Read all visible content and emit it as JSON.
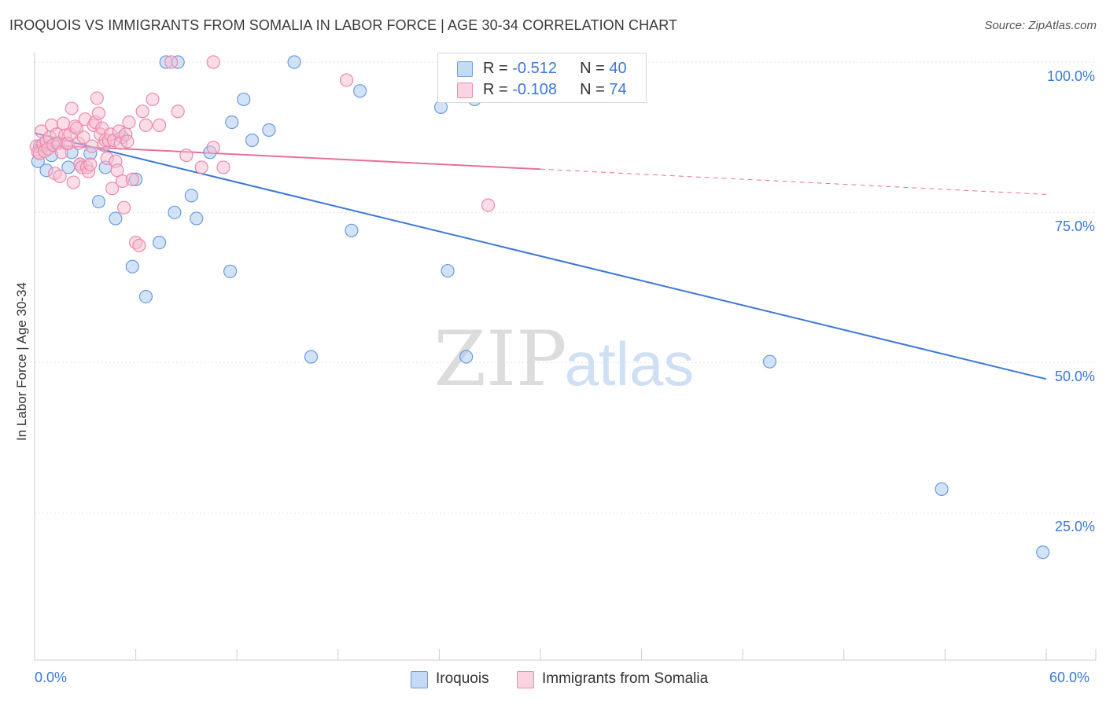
{
  "title": "IROQUOIS VS IMMIGRANTS FROM SOMALIA IN LABOR FORCE | AGE 30-34 CORRELATION CHART",
  "source": "Source: ZipAtlas.com",
  "watermark": {
    "zip": "ZIP",
    "atlas": "atlas"
  },
  "legend": {
    "rows": [
      {
        "r_label": "R = ",
        "r_value": "-0.512",
        "n_label": "N = ",
        "n_value": "40",
        "color": "#a8c8f0",
        "stroke": "#6b9be0"
      },
      {
        "r_label": "R = ",
        "r_value": "-0.108",
        "n_label": "N = ",
        "n_value": "74",
        "color": "#f8bcd0",
        "stroke": "#ec8aac"
      }
    ]
  },
  "bottom_legend": [
    {
      "label": "Iroquois",
      "color": "#a8c8f0",
      "stroke": "#6b9be0"
    },
    {
      "label": "Immigrants from Somalia",
      "color": "#f8bcd0",
      "stroke": "#ec8aac"
    }
  ],
  "axes": {
    "ylabel": "In Labor Force | Age 30-34",
    "x_ticks": [
      "0.0%",
      "60.0%"
    ],
    "y_ticks": [
      "100.0%",
      "75.0%",
      "50.0%",
      "25.0%"
    ]
  },
  "chart_data": {
    "type": "scatter",
    "title": "IROQUOIS VS IMMIGRANTS FROM SOMALIA IN LABOR FORCE | AGE 30-34 CORRELATION CHART",
    "xlabel": "",
    "ylabel": "In Labor Force | Age 30-34",
    "xlim": [
      0,
      60
    ],
    "ylim": [
      3,
      102
    ],
    "x_tick_values": [
      0,
      60
    ],
    "y_tick_values": [
      100,
      75,
      50,
      25
    ],
    "grid": true,
    "series": [
      {
        "name": "Iroquois",
        "color": "#6b9be0",
        "fill": "#a8c8f0",
        "points": [
          [
            0.2,
            83.5
          ],
          [
            0.3,
            86
          ],
          [
            0.7,
            82
          ],
          [
            1.0,
            84.5
          ],
          [
            1.3,
            86.5
          ],
          [
            2.0,
            82.5
          ],
          [
            2.2,
            85
          ],
          [
            2.7,
            83
          ],
          [
            3.3,
            84.8
          ],
          [
            3.8,
            76.8
          ],
          [
            4.2,
            82.5
          ],
          [
            4.8,
            74
          ],
          [
            5.2,
            87.5
          ],
          [
            5.8,
            66
          ],
          [
            6.0,
            80.5
          ],
          [
            6.6,
            61
          ],
          [
            7.4,
            70
          ],
          [
            7.8,
            100
          ],
          [
            8.3,
            75
          ],
          [
            8.5,
            100
          ],
          [
            9.3,
            77.8
          ],
          [
            9.6,
            74
          ],
          [
            10.4,
            85
          ],
          [
            11.6,
            65.2
          ],
          [
            11.7,
            90
          ],
          [
            12.4,
            93.8
          ],
          [
            12.9,
            87
          ],
          [
            13.9,
            88.7
          ],
          [
            15.4,
            100
          ],
          [
            16.4,
            51
          ],
          [
            18.8,
            72
          ],
          [
            19.3,
            95.2
          ],
          [
            24.1,
            92.5
          ],
          [
            24.5,
            65.3
          ],
          [
            25.6,
            51
          ],
          [
            26.1,
            93.8
          ],
          [
            28.1,
            100
          ],
          [
            43.6,
            50.2
          ],
          [
            53.8,
            29
          ],
          [
            59.8,
            18.5
          ]
        ],
        "trend": {
          "x": [
            0,
            60
          ],
          "y": [
            88.2,
            47.3
          ],
          "style": "solid"
        }
      },
      {
        "name": "Immigrants from Somalia",
        "color": "#ec8aac",
        "fill": "#f8bcd0",
        "points": [
          [
            0.1,
            86
          ],
          [
            0.2,
            85
          ],
          [
            0.3,
            84.8
          ],
          [
            0.4,
            88.5
          ],
          [
            0.5,
            86.3
          ],
          [
            0.6,
            85.2
          ],
          [
            0.7,
            86.8
          ],
          [
            0.8,
            85.6
          ],
          [
            0.9,
            87.5
          ],
          [
            1.0,
            89.5
          ],
          [
            1.1,
            86.2
          ],
          [
            1.2,
            81.5
          ],
          [
            1.3,
            88
          ],
          [
            1.4,
            86.5
          ],
          [
            1.5,
            81
          ],
          [
            1.6,
            85
          ],
          [
            1.7,
            89.8
          ],
          [
            1.8,
            87.8
          ],
          [
            1.9,
            86.5
          ],
          [
            2.0,
            86.5
          ],
          [
            2.1,
            88
          ],
          [
            2.2,
            92.3
          ],
          [
            2.3,
            80
          ],
          [
            2.4,
            89.3
          ],
          [
            2.5,
            89
          ],
          [
            2.6,
            86.5
          ],
          [
            2.7,
            83
          ],
          [
            2.8,
            82.5
          ],
          [
            2.9,
            87.5
          ],
          [
            3.0,
            90.5
          ],
          [
            3.1,
            82.5
          ],
          [
            3.2,
            81.8
          ],
          [
            3.3,
            83
          ],
          [
            3.4,
            86
          ],
          [
            3.5,
            89.5
          ],
          [
            3.6,
            90
          ],
          [
            3.7,
            94
          ],
          [
            3.8,
            91.5
          ],
          [
            3.9,
            88
          ],
          [
            4.0,
            89
          ],
          [
            4.1,
            86.2
          ],
          [
            4.2,
            87
          ],
          [
            4.3,
            84
          ],
          [
            4.4,
            87
          ],
          [
            4.5,
            88
          ],
          [
            4.6,
            79
          ],
          [
            4.7,
            87
          ],
          [
            4.8,
            83.5
          ],
          [
            4.9,
            82
          ],
          [
            5.0,
            88.5
          ],
          [
            5.1,
            86.5
          ],
          [
            5.2,
            80.2
          ],
          [
            5.3,
            75.8
          ],
          [
            5.4,
            88
          ],
          [
            5.5,
            86.8
          ],
          [
            5.6,
            90
          ],
          [
            5.8,
            80.5
          ],
          [
            6.0,
            70
          ],
          [
            6.2,
            69.5
          ],
          [
            6.4,
            91.8
          ],
          [
            6.6,
            89.5
          ],
          [
            7.0,
            93.8
          ],
          [
            7.4,
            89.5
          ],
          [
            8.1,
            100
          ],
          [
            8.5,
            91.8
          ],
          [
            9.0,
            84.5
          ],
          [
            9.9,
            82.5
          ],
          [
            10.6,
            100
          ],
          [
            10.6,
            85.8
          ],
          [
            11.2,
            82.5
          ],
          [
            18.5,
            97
          ],
          [
            26.9,
            76.2
          ],
          [
            29.0,
            100
          ],
          [
            29.5,
            100
          ]
        ],
        "trend": {
          "x": [
            0,
            30
          ],
          "y": [
            86.3,
            82.2
          ],
          "style": "solid",
          "extension": {
            "x": [
              30,
              60
            ],
            "y": [
              82.2,
              78.0
            ],
            "style": "dashed"
          }
        }
      }
    ]
  }
}
